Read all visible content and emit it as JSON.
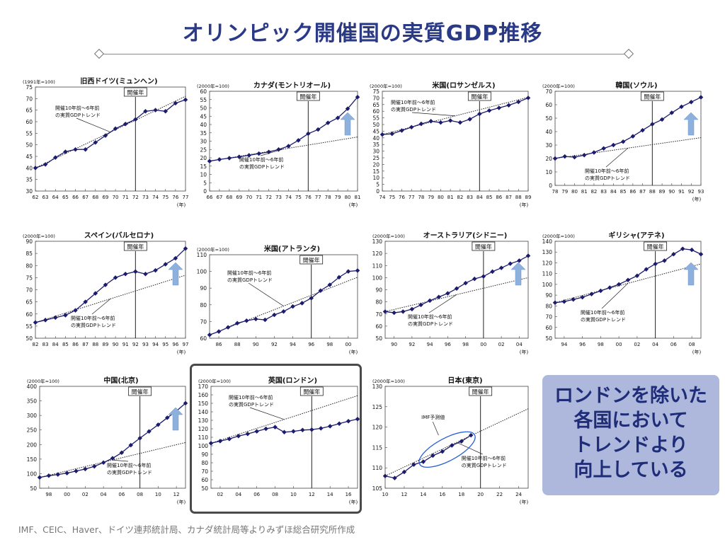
{
  "title": "オリンピック開催国の実質GDP推移",
  "callout": [
    "ロンドンを除いた",
    "各国において",
    "トレンドより",
    "向上している"
  ],
  "source": "IMF、CEIC、Haver、ドイツ連邦統計局、カナダ統計局等よりみずほ総合研究所作成",
  "colors": {
    "series": "#1c1c6e",
    "arrow": "#8db1dc",
    "ellipse": "#2a5fd6",
    "title": "#2b3a86"
  },
  "common": {
    "host_year_label": "開催年",
    "trend_label": [
      "開催10年前～6年前",
      "の実質GDPトレンド"
    ],
    "year_unit": "(年)"
  },
  "chart_data": [
    {
      "type": "line",
      "title": "旧西ドイツ(ミュンヘン)",
      "base": "(1991年=100)",
      "ylim": [
        30,
        75
      ],
      "yticks": [
        30,
        35,
        40,
        45,
        50,
        55,
        60,
        65,
        70,
        75
      ],
      "xlim": [
        1962,
        1977
      ],
      "xticks": [
        62,
        63,
        64,
        65,
        66,
        67,
        68,
        69,
        70,
        71,
        72,
        73,
        74,
        75,
        76,
        77
      ],
      "host": 1972,
      "arrow": false,
      "series": {
        "x": [
          1962,
          1963,
          1964,
          1965,
          1966,
          1967,
          1968,
          1969,
          1970,
          1971,
          1972,
          1973,
          1974,
          1975,
          1976,
          1977
        ],
        "values": [
          40,
          41.5,
          44.5,
          47,
          48,
          48,
          51,
          54,
          57,
          59,
          61,
          64.5,
          65,
          64.5,
          68,
          69.5
        ]
      },
      "trend": {
        "x": [
          1962,
          1977
        ],
        "values": [
          40,
          71
        ]
      }
    },
    {
      "type": "line",
      "title": "カナダ(モントリオール)",
      "base": "(2000年=100)",
      "ylim": [
        0,
        60
      ],
      "yticks": [
        0,
        5,
        10,
        15,
        20,
        25,
        30,
        35,
        40,
        45,
        50,
        55,
        60
      ],
      "xlim": [
        1966,
        1981
      ],
      "xticks": [
        66,
        67,
        68,
        69,
        70,
        71,
        72,
        73,
        74,
        75,
        76,
        77,
        78,
        79,
        80,
        81
      ],
      "host": 1976,
      "arrow": true,
      "series": {
        "x": [
          1966,
          1967,
          1968,
          1969,
          1970,
          1971,
          1972,
          1973,
          1974,
          1975,
          1976,
          1977,
          1978,
          1979,
          1980,
          1981
        ],
        "values": [
          18,
          19,
          19.8,
          20.6,
          21.5,
          22.5,
          23.5,
          25,
          27,
          30.5,
          34.5,
          37,
          41,
          44,
          49.5,
          56.5
        ]
      },
      "trend": {
        "x": [
          1966,
          1981
        ],
        "values": [
          18,
          32.5
        ]
      }
    },
    {
      "type": "line",
      "title": "米国(ロサンゼルス)",
      "base": "(2000年=100)",
      "ylim": [
        0,
        75
      ],
      "yticks": [
        0,
        5,
        10,
        15,
        20,
        25,
        30,
        35,
        40,
        45,
        50,
        55,
        60,
        65,
        70,
        75
      ],
      "xlim": [
        1974,
        1989
      ],
      "xticks": [
        74,
        75,
        76,
        77,
        78,
        79,
        80,
        81,
        82,
        83,
        84,
        85,
        86,
        87,
        88,
        89
      ],
      "host": 1984,
      "arrow": false,
      "series": {
        "x": [
          1974,
          1975,
          1976,
          1977,
          1978,
          1979,
          1980,
          1981,
          1982,
          1983,
          1984,
          1985,
          1986,
          1987,
          1988,
          1989
        ],
        "values": [
          42.5,
          43,
          45.5,
          48,
          50.5,
          52.5,
          51.5,
          53,
          51.5,
          54,
          58,
          60.5,
          62.5,
          64.5,
          67,
          70
        ]
      },
      "trend": {
        "x": [
          1974,
          1989
        ],
        "values": [
          42.5,
          70.5
        ]
      }
    },
    {
      "type": "line",
      "title": "韓国(ソウル)",
      "base": "(2000年=100)",
      "ylim": [
        0,
        70
      ],
      "yticks": [
        0,
        10,
        20,
        30,
        40,
        50,
        60,
        70
      ],
      "xlim": [
        1978,
        1993
      ],
      "xticks": [
        78,
        79,
        80,
        81,
        82,
        83,
        84,
        85,
        86,
        87,
        88,
        89,
        90,
        91,
        92,
        93
      ],
      "host": 1988,
      "arrow": true,
      "series": {
        "x": [
          1978,
          1979,
          1980,
          1981,
          1982,
          1983,
          1984,
          1985,
          1986,
          1987,
          1988,
          1989,
          1990,
          1991,
          1992,
          1993
        ],
        "values": [
          20,
          21.5,
          21,
          22.5,
          24.5,
          27.5,
          30,
          32.5,
          36.5,
          41,
          45.5,
          49,
          54,
          58.5,
          62,
          65.5
        ]
      },
      "trend": {
        "x": [
          1978,
          1993
        ],
        "values": [
          20,
          35.5
        ]
      }
    },
    {
      "type": "line",
      "title": "スペイン(バルセロナ)",
      "base": "(2000年=100)",
      "ylim": [
        50,
        90
      ],
      "yticks": [
        50,
        55,
        60,
        65,
        70,
        75,
        80,
        85,
        90
      ],
      "xlim": [
        1982,
        1997
      ],
      "xticks": [
        82,
        83,
        84,
        85,
        86,
        87,
        88,
        89,
        90,
        91,
        92,
        93,
        94,
        95,
        96,
        97
      ],
      "host": 1992,
      "arrow": true,
      "series": {
        "x": [
          1982,
          1983,
          1984,
          1985,
          1986,
          1987,
          1988,
          1989,
          1990,
          1991,
          1992,
          1993,
          1994,
          1995,
          1996,
          1997
        ],
        "values": [
          56.5,
          57.5,
          58.5,
          59.5,
          61.5,
          65,
          68.5,
          72,
          75,
          76.5,
          77.5,
          76.5,
          78,
          80.5,
          83,
          87
        ]
      },
      "trend": {
        "x": [
          1982,
          1997
        ],
        "values": [
          56.5,
          76
        ]
      }
    },
    {
      "type": "line",
      "title": "米国(アトランタ)",
      "base": "(2000年=100)",
      "ylim": [
        60,
        110
      ],
      "yticks": [
        60,
        70,
        80,
        90,
        100,
        110
      ],
      "xlim": [
        1985,
        2001
      ],
      "xticks": [
        86,
        88,
        90,
        92,
        94,
        96,
        98,
        0
      ],
      "host": 1996,
      "arrow": false,
      "series": {
        "x": [
          1985,
          1986,
          1987,
          1988,
          1989,
          1990,
          1991,
          1992,
          1993,
          1994,
          1995,
          1996,
          1997,
          1998,
          1999,
          2000,
          2001
        ],
        "values": [
          62,
          64,
          66.5,
          69,
          70.5,
          71.5,
          71,
          74,
          76,
          79,
          81,
          84,
          88.5,
          92,
          96.5,
          100,
          100.5
        ]
      },
      "trend": {
        "x": [
          1985,
          2001
        ],
        "values": [
          62,
          96.5
        ]
      }
    },
    {
      "type": "line",
      "title": "オーストラリア(シドニー)",
      "base": "(2000年=100)",
      "ylim": [
        50,
        130
      ],
      "yticks": [
        50,
        60,
        70,
        80,
        90,
        100,
        110,
        120,
        130
      ],
      "xlim": [
        1989,
        2005
      ],
      "xticks": [
        90,
        92,
        94,
        96,
        98,
        0,
        2,
        4
      ],
      "host": 2000,
      "arrow": true,
      "series": {
        "x": [
          1989,
          1990,
          1991,
          1992,
          1993,
          1994,
          1995,
          1996,
          1997,
          1998,
          1999,
          2000,
          2001,
          2002,
          2003,
          2004,
          2005
        ],
        "values": [
          72,
          71,
          72,
          74,
          77.5,
          81,
          84,
          87,
          91,
          95.5,
          99,
          101,
          105,
          108,
          111.5,
          114,
          118
        ]
      },
      "trend": {
        "x": [
          1989,
          2005
        ],
        "values": [
          72,
          100
        ]
      }
    },
    {
      "type": "line",
      "title": "ギリシャ(アテネ)",
      "base": "(2000年=100)",
      "ylim": [
        50,
        140
      ],
      "yticks": [
        50,
        60,
        70,
        80,
        90,
        100,
        110,
        120,
        130,
        140
      ],
      "xlim": [
        1993,
        2009
      ],
      "xticks": [
        94,
        96,
        98,
        0,
        2,
        4,
        6,
        8
      ],
      "host": 2004,
      "arrow": true,
      "series": {
        "x": [
          1993,
          1994,
          1995,
          1996,
          1997,
          1998,
          1999,
          2000,
          2001,
          2002,
          2003,
          2004,
          2005,
          2006,
          2007,
          2008,
          2009
        ],
        "values": [
          83,
          84,
          86,
          88,
          91,
          94,
          97,
          100,
          104,
          108,
          114,
          119,
          122,
          128,
          133,
          132,
          128
        ]
      },
      "trend": {
        "x": [
          1993,
          2009
        ],
        "values": [
          83,
          119
        ]
      }
    },
    {
      "type": "line",
      "title": "中国(北京)",
      "base": "(2000年=100)",
      "ylim": [
        50,
        400
      ],
      "yticks": [
        50,
        100,
        150,
        200,
        250,
        300,
        350,
        400
      ],
      "xlim": [
        1997,
        2013
      ],
      "xticks": [
        98,
        0,
        2,
        4,
        6,
        8,
        10,
        12
      ],
      "host": 2008,
      "arrow": true,
      "series": {
        "x": [
          1997,
          1998,
          1999,
          2000,
          2001,
          2002,
          2003,
          2004,
          2005,
          2006,
          2007,
          2008,
          2009,
          2010,
          2011,
          2012,
          2013
        ],
        "values": [
          87,
          93,
          97,
          102,
          109,
          116,
          125,
          138,
          153,
          172,
          198,
          222,
          245,
          268,
          292,
          315,
          342
        ]
      },
      "trend": {
        "x": [
          1997,
          2013
        ],
        "values": [
          87,
          207
        ]
      }
    },
    {
      "type": "line",
      "title": "英国(ロンドン)",
      "base": "(2000年=100)",
      "ylim": [
        50,
        170
      ],
      "yticks": [
        50,
        60,
        70,
        80,
        90,
        100,
        110,
        120,
        130,
        140,
        150,
        160,
        170
      ],
      "xlim": [
        2001,
        2017
      ],
      "xticks": [
        2,
        4,
        6,
        8,
        10,
        12,
        14,
        16
      ],
      "host": 2012,
      "arrow": false,
      "series": {
        "x": [
          2001,
          2002,
          2003,
          2004,
          2005,
          2006,
          2007,
          2008,
          2009,
          2010,
          2011,
          2012,
          2013,
          2014,
          2015,
          2016,
          2017
        ],
        "values": [
          103,
          105.5,
          108,
          111.5,
          114,
          117,
          120,
          122,
          116,
          117,
          118.5,
          119,
          120.5,
          123,
          126,
          129,
          131.5
        ]
      },
      "trend": {
        "x": [
          2001,
          2017
        ],
        "values": [
          103,
          159
        ]
      }
    },
    {
      "type": "line",
      "title": "日本(東京)",
      "base": "(2000年=100)",
      "ylim": [
        105,
        130
      ],
      "yticks": [
        105,
        110,
        115,
        120,
        125,
        130
      ],
      "xlim": [
        2010,
        2025
      ],
      "xticks": [
        10,
        12,
        14,
        16,
        18,
        20,
        22,
        24
      ],
      "host": 2020,
      "arrow": false,
      "forecast_label": "IMF予測値",
      "series": {
        "x": [
          2010,
          2011,
          2012,
          2013,
          2014,
          2015,
          2016,
          2017,
          2018,
          2019
        ],
        "values": [
          108,
          107.5,
          109,
          110.8,
          111.5,
          113,
          114,
          115.5,
          116.5,
          118
        ]
      },
      "trend": {
        "x": [
          2010,
          2025
        ],
        "values": [
          108,
          124.5
        ]
      }
    }
  ]
}
